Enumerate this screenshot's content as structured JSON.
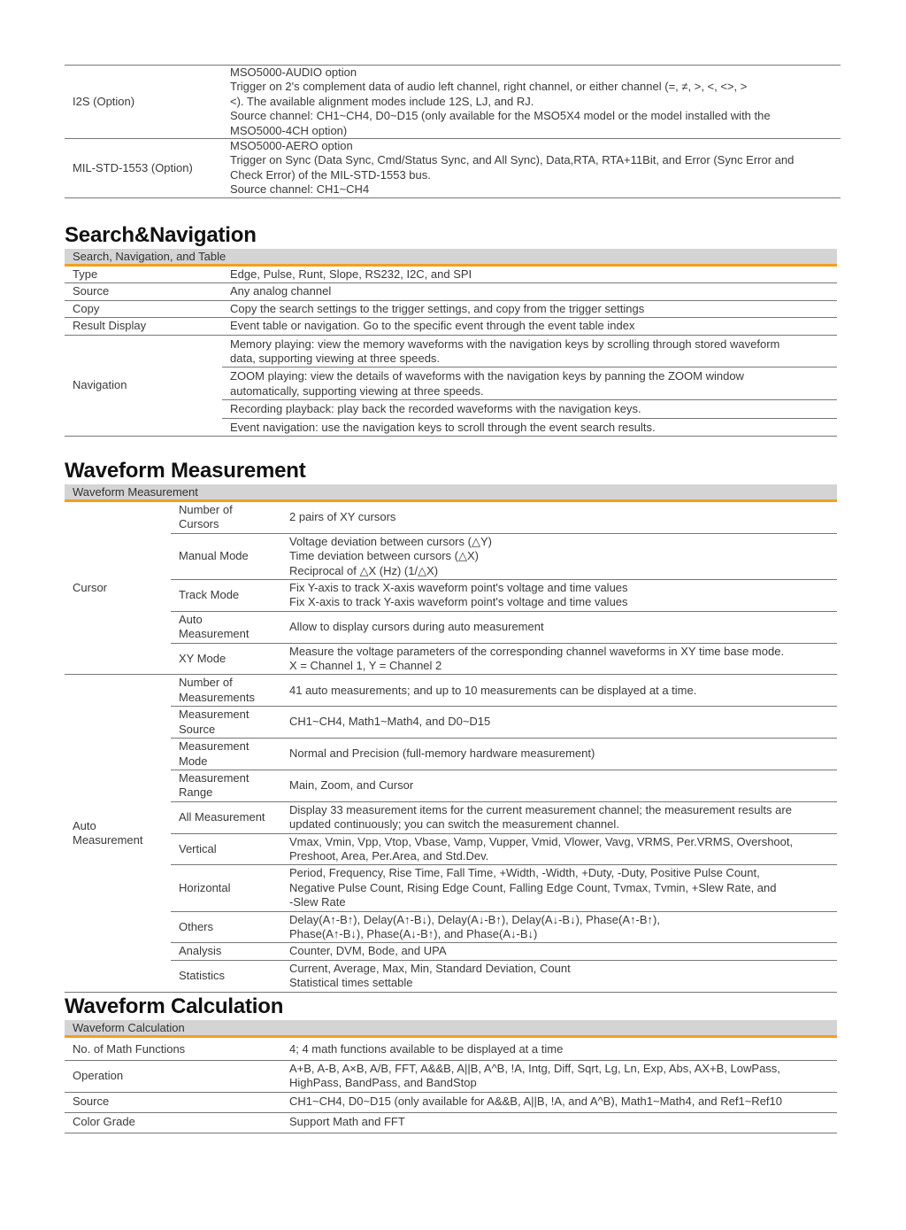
{
  "options_table": {
    "rows": [
      {
        "label": "I2S (Option)",
        "lines": [
          "MSO5000-AUDIO option",
          "Trigger on 2's complement data of audio left channel, right channel, or either channel (=,  ≠,  >,  <,  <>,  >\n<). The available alignment modes include 12S, LJ, and RJ.",
          "Source channel: CH1~CH4, D0~D15 (only available for the MSO5X4 model or the model installed with the\nMSO5000-4CH option)"
        ]
      },
      {
        "label": "MIL-STD-1553 (Option)",
        "lines": [
          "MSO5000-AERO option",
          "Trigger on Sync (Data Sync, Cmd/Status Sync, and All Sync), Data,RTA, RTA+11Bit, and Error (Sync Error and\nCheck Error) of the MIL-STD-1553 bus.",
          "Source channel: CH1~CH4"
        ]
      }
    ]
  },
  "search_navigation": {
    "heading": "Search&Navigation",
    "band": "Search, Navigation, and Table",
    "rows": [
      {
        "label": "Type",
        "items": [
          "Edge, Pulse, Runt, Slope, RS232, I2C, and SPI"
        ]
      },
      {
        "label": "Source",
        "items": [
          "Any analog channel"
        ]
      },
      {
        "label": "Copy",
        "items": [
          "Copy the search settings to the trigger settings, and copy from the trigger settings"
        ]
      },
      {
        "label": "Result Display",
        "items": [
          "Event table or navigation. Go to the specific event through the event table index"
        ]
      },
      {
        "label": "Navigation",
        "items": [
          "Memory playing: view the memory waveforms with the navigation keys by scrolling through stored waveform\ndata, supporting viewing at three speeds.",
          "ZOOM playing: view the details of waveforms with the navigation keys by panning the ZOOM window\nautomatically, supporting viewing at three speeds.",
          "Recording playback: play back the recorded waveforms with the navigation keys.",
          "Event navigation: use the navigation keys to scroll through the event search results."
        ]
      }
    ]
  },
  "waveform_measurement": {
    "heading": "Waveform Measurement",
    "band": "Waveform Measurement",
    "groups": [
      {
        "group": "Cursor",
        "items": [
          {
            "label": "Number of\nCursors",
            "value": "2 pairs of XY cursors"
          },
          {
            "label": "Manual Mode",
            "value": "Voltage deviation between cursors (△Y)\nTime deviation between cursors (△X)\nReciprocal of △X (Hz) (1/△X)"
          },
          {
            "label": "Track Mode",
            "value": "Fix Y-axis to track X-axis waveform point's voltage and time values\nFix X-axis to track Y-axis waveform point's voltage and time values"
          },
          {
            "label": "Auto\nMeasurement",
            "value": "Allow to display cursors during auto measurement"
          },
          {
            "label": "XY Mode",
            "value": "Measure the voltage parameters of the corresponding channel waveforms in XY time base mode.\nX = Channel 1, Y = Channel 2"
          }
        ]
      },
      {
        "group": "Auto\nMeasurement",
        "items": [
          {
            "label": "Number of\nMeasurements",
            "value": "41 auto measurements; and up to 10 measurements can be displayed at a time."
          },
          {
            "label": "Measurement\nSource",
            "value": "CH1~CH4, Math1~Math4, and D0~D15"
          },
          {
            "label": "Measurement\nMode",
            "value": "Normal and Precision (full-memory hardware measurement)"
          },
          {
            "label": "Measurement\nRange",
            "value": "Main, Zoom, and Cursor"
          },
          {
            "label": "All Measurement",
            "value": "Display 33 measurement items for the current measurement channel; the measurement results are\nupdated continuously; you can switch the measurement channel."
          },
          {
            "label": "Vertical",
            "value": "Vmax, Vmin, Vpp, Vtop, Vbase, Vamp, Vupper, Vmid, Vlower, Vavg, VRMS, Per.VRMS, Overshoot,\nPreshoot, Area, Per.Area, and Std.Dev."
          },
          {
            "label": "Horizontal",
            "value": "Period, Frequency, Rise Time, Fall Time, +Width, -Width, +Duty, -Duty, Positive Pulse Count,\nNegative Pulse Count, Rising Edge Count, Falling Edge Count, Tvmax, Tvmin, +Slew Rate, and\n-Slew Rate"
          },
          {
            "label": "Others",
            "value": "Delay(A↑-B↑), Delay(A↑-B↓), Delay(A↓-B↑), Delay(A↓-B↓), Phase(A↑-B↑),\nPhase(A↑-B↓), Phase(A↓-B↑), and Phase(A↓-B↓)"
          },
          {
            "label": "Analysis",
            "value": "Counter, DVM, Bode, and UPA"
          },
          {
            "label": "Statistics",
            "value": "Current, Average, Max, Min, Standard Deviation, Count\nStatistical times settable"
          }
        ]
      }
    ]
  },
  "waveform_calculation": {
    "heading": "Waveform Calculation",
    "band": "Waveform Calculation",
    "rows": [
      {
        "label": "No. of Math Functions",
        "value": "4; 4 math functions available to be displayed at a time"
      },
      {
        "label": "Operation",
        "value": "A+B, A-B, A×B, A/B, FFT, A&&B, A||B, A^B, !A, Intg, Diff, Sqrt, Lg, Ln, Exp, Abs, AX+B, LowPass,\nHighPass, BandPass, and BandStop"
      },
      {
        "label": "Source",
        "value": "CH1~CH4, D0~D15 (only available for A&&B, A||B, !A, and A^B), Math1~Math4, and Ref1~Ref10"
      },
      {
        "label": "Color Grade",
        "value": "Support Math and FFT"
      }
    ],
    "accent_color": "#f0a020"
  }
}
